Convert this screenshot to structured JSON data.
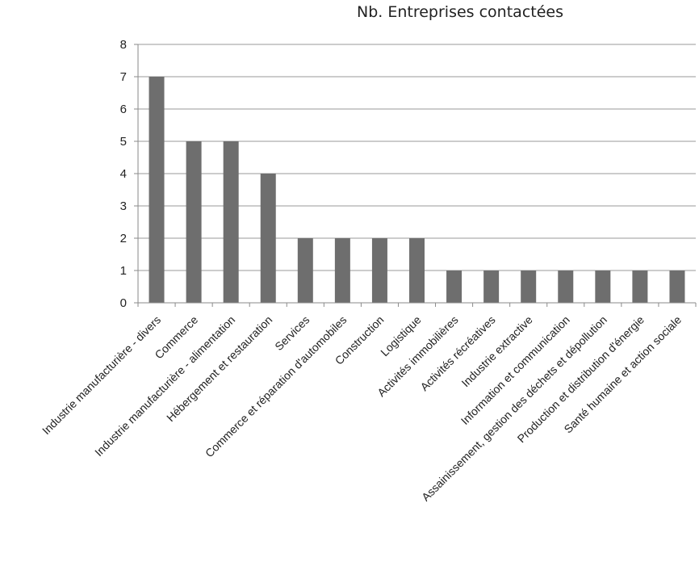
{
  "chart_data": {
    "type": "bar",
    "title": "Nb. Entreprises contactées",
    "xlabel": "",
    "ylabel": "",
    "ylim": [
      0,
      8
    ],
    "yticks": [
      0,
      1,
      2,
      3,
      4,
      5,
      6,
      7,
      8
    ],
    "grid": true,
    "legend": "none",
    "bar_color": "#6e6e6e",
    "categories": [
      "Industrie manufacturière - divers",
      "Commerce",
      "Industrie manufacturière - alimentation",
      "Hébergement et restauration",
      "Services",
      "Commerce et réparation d'automobiles",
      "Construction",
      "Logistique",
      "Activités immobilières",
      "Activités récréatives",
      "Industrie extractive",
      "Information et communication",
      "Assainissement, gestion des déchets et dépollution",
      "Production et distribution d'énergie",
      "Santé humaine et action sociale"
    ],
    "values": [
      7,
      5,
      5,
      4,
      2,
      2,
      2,
      2,
      1,
      1,
      1,
      1,
      1,
      1,
      1
    ]
  }
}
